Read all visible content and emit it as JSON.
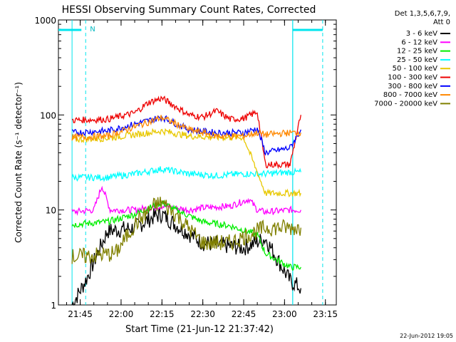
{
  "chart_data": {
    "type": "line",
    "title": "HESSI Observing Summary Count Rates, Corrected",
    "xlabel": "Start Time (21-Jun-12 21:37:42)",
    "ylabel": "Corrected Count Rate (s⁻¹ detector⁻¹)",
    "yscale": "log",
    "ylim": [
      1,
      1000
    ],
    "y_ticks": [
      "1",
      "10",
      "100",
      "1000"
    ],
    "xlim_minutes": [
      21.6,
      23.32
    ],
    "x_ticks": [
      "21:45",
      "22:00",
      "22:15",
      "22:30",
      "22:45",
      "23:00",
      "23:15"
    ],
    "legend_header": [
      "Det 1,3,5,6,7,9,",
      "Att 0"
    ],
    "legend_position": "right",
    "annotations": {
      "night_marker": "N"
    },
    "footer_date": "22-Jun-2012 19:05",
    "colors": {
      "bands": [
        "#000000",
        "#ff00ff",
        "#00ee00",
        "#00ffff",
        "#e8c800",
        "#ee0000",
        "#0000ff",
        "#ff8800",
        "#808000"
      ],
      "orbit_bars": "#00e5ee"
    },
    "series": [
      {
        "name": "3 - 6 keV",
        "color": "#000000",
        "x": [
          "21:42",
          "21:47",
          "21:55",
          "22:05",
          "22:12",
          "22:15",
          "22:20",
          "22:30",
          "22:45",
          "22:53",
          "23:02",
          "23:06"
        ],
        "y": [
          1,
          1.8,
          6,
          6.5,
          8.5,
          9,
          7,
          4.5,
          4,
          5,
          1.8,
          1.5
        ]
      },
      {
        "name": "6 - 12 keV",
        "color": "#ff00ff",
        "x": [
          "21:42",
          "21:50",
          "21:53",
          "21:56",
          "22:05",
          "22:15",
          "22:25",
          "22:30",
          "22:40",
          "22:47",
          "22:50",
          "22:53",
          "23:02",
          "23:06"
        ],
        "y": [
          9.5,
          10,
          18,
          10,
          10,
          11,
          10,
          10.5,
          11,
          13,
          10,
          9.5,
          10,
          10
        ]
      },
      {
        "name": "12 - 25 keV",
        "color": "#00ee00",
        "x": [
          "21:42",
          "21:55",
          "22:05",
          "22:12",
          "22:15",
          "22:20",
          "22:30",
          "22:40",
          "22:50",
          "22:53",
          "23:02",
          "23:06"
        ],
        "y": [
          7,
          7.5,
          9,
          11,
          12,
          10,
          7.5,
          6.8,
          5.5,
          3.5,
          2.5,
          2.5
        ]
      },
      {
        "name": "25 - 50 keV",
        "color": "#00ffff",
        "x": [
          "21:42",
          "21:55",
          "22:05",
          "22:15",
          "22:25",
          "22:35",
          "22:45",
          "22:53",
          "23:02",
          "23:06"
        ],
        "y": [
          22,
          22,
          24,
          27,
          24,
          23,
          24,
          24,
          25,
          25
        ]
      },
      {
        "name": "50 - 100 keV",
        "color": "#e8c800",
        "x": [
          "21:42",
          "21:55",
          "22:05",
          "22:15",
          "22:25",
          "22:35",
          "22:45",
          "22:53",
          "23:02",
          "23:06"
        ],
        "y": [
          55,
          57,
          62,
          68,
          60,
          58,
          58,
          15,
          15,
          15
        ]
      },
      {
        "name": "100 - 300 keV",
        "color": "#ee0000",
        "x": [
          "21:42",
          "21:55",
          "22:05",
          "22:10",
          "22:15",
          "22:25",
          "22:30",
          "22:35",
          "22:40",
          "22:45",
          "22:50",
          "22:53",
          "23:02",
          "23:06"
        ],
        "y": [
          88,
          90,
          105,
          135,
          150,
          100,
          95,
          110,
          90,
          92,
          108,
          30,
          30,
          100
        ]
      },
      {
        "name": "300 - 800 keV",
        "color": "#0000ff",
        "x": [
          "21:42",
          "21:55",
          "22:05",
          "22:15",
          "22:25",
          "22:35",
          "22:45",
          "22:50",
          "22:53",
          "23:02",
          "23:06"
        ],
        "y": [
          65,
          68,
          80,
          95,
          70,
          65,
          65,
          72,
          40,
          45,
          70
        ]
      },
      {
        "name": "800 - 7000 keV",
        "color": "#ff8800",
        "x": [
          "21:42",
          "21:55",
          "22:05",
          "22:15",
          "22:25",
          "22:35",
          "22:45",
          "22:50",
          "22:53",
          "23:02",
          "23:06"
        ],
        "y": [
          58,
          60,
          75,
          94,
          70,
          60,
          60,
          65,
          62,
          65,
          65
        ]
      },
      {
        "name": "7000 - 20000 keV",
        "color": "#808000",
        "x": [
          "21:42",
          "21:50",
          "21:58",
          "22:05",
          "22:12",
          "22:15",
          "22:20",
          "22:30",
          "22:40",
          "22:50",
          "22:53",
          "23:02",
          "23:06"
        ],
        "y": [
          3.2,
          3.3,
          3.5,
          7,
          11,
          12,
          9,
          4.5,
          4.5,
          6,
          6.5,
          6.5,
          6.5
        ]
      }
    ]
  }
}
